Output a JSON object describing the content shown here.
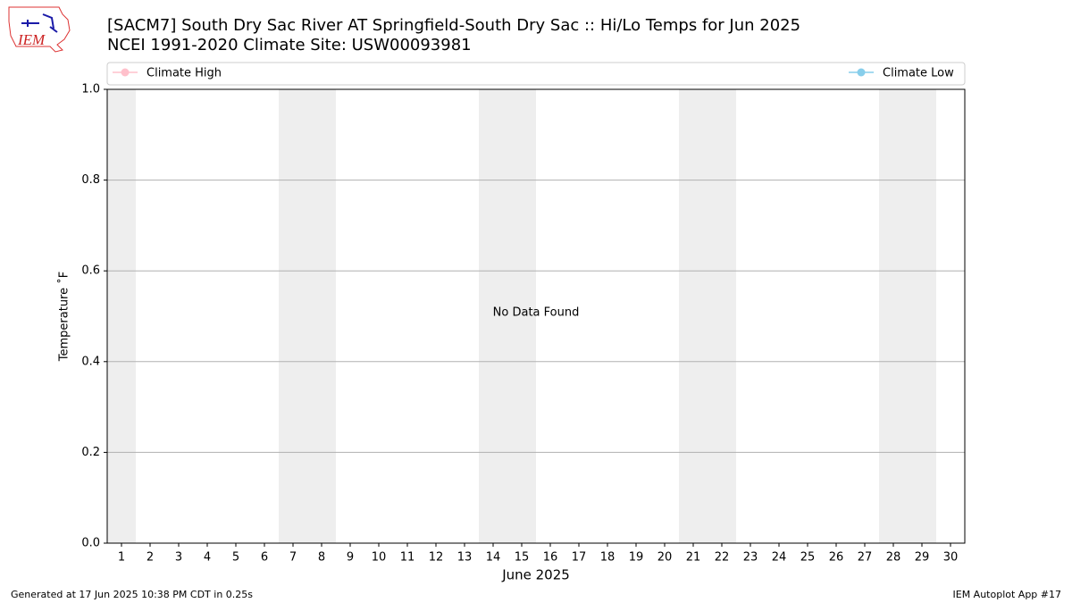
{
  "chart_data": {
    "type": "line",
    "title": "[SACM7] South Dry Sac River  AT Springfield-South Dry Sac :: Hi/Lo Temps for Jun 2025",
    "subtitle": "NCEI 1991-2020 Climate Site: USW00093981",
    "x": [
      1,
      2,
      3,
      4,
      5,
      6,
      7,
      8,
      9,
      10,
      11,
      12,
      13,
      14,
      15,
      16,
      17,
      18,
      19,
      20,
      21,
      22,
      23,
      24,
      25,
      26,
      27,
      28,
      29,
      30
    ],
    "series": [
      {
        "name": "Climate High",
        "color": "#ffc0cb",
        "values": [
          null,
          null,
          null,
          null,
          null,
          null,
          null,
          null,
          null,
          null,
          null,
          null,
          null,
          null,
          null,
          null,
          null,
          null,
          null,
          null,
          null,
          null,
          null,
          null,
          null,
          null,
          null,
          null,
          null,
          null
        ]
      },
      {
        "name": "Climate Low",
        "color": "#87ceeb",
        "values": [
          null,
          null,
          null,
          null,
          null,
          null,
          null,
          null,
          null,
          null,
          null,
          null,
          null,
          null,
          null,
          null,
          null,
          null,
          null,
          null,
          null,
          null,
          null,
          null,
          null,
          null,
          null,
          null,
          null,
          null
        ]
      }
    ],
    "xlim": [
      0.5,
      30.5
    ],
    "xticks": [
      1,
      2,
      3,
      4,
      5,
      6,
      7,
      8,
      9,
      10,
      11,
      12,
      13,
      14,
      15,
      16,
      17,
      18,
      19,
      20,
      21,
      22,
      23,
      24,
      25,
      26,
      27,
      28,
      29,
      30
    ],
    "xlabel": "June 2025",
    "ylabel": "Temperature $^\\circ$F",
    "ylabel_printed": "Temperature ˚F",
    "ylim": [
      0,
      1
    ],
    "yticks": [
      {
        "value": 0,
        "label": "0.0"
      },
      {
        "value": 0.2,
        "label": "0.2"
      },
      {
        "value": 0.4,
        "label": "0.4"
      },
      {
        "value": 0.6,
        "label": "0.6"
      },
      {
        "value": 0.8,
        "label": "0.8"
      },
      {
        "value": 1,
        "label": "1.0"
      }
    ],
    "grid": true,
    "shaded_days": [
      1,
      7,
      8,
      14,
      15,
      21,
      22,
      28,
      29
    ],
    "shade_color": "#eeeeee",
    "annotation": "No Data Found"
  },
  "logo": {
    "text": "IEM"
  },
  "footer": {
    "left": "Generated at 17 Jun 2025 10:38 PM CDT in 0.25s",
    "right": "IEM Autoplot App #17"
  }
}
